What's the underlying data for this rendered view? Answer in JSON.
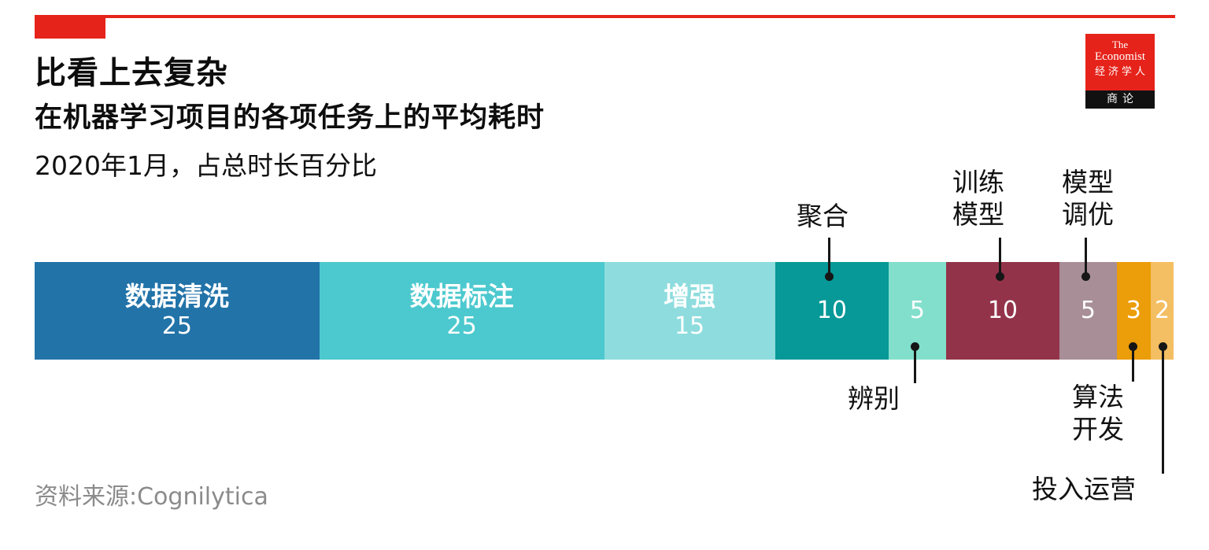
{
  "header": {
    "title": "比看上去复杂",
    "subtitle": "在机器学习项目的各项任务上的平均耗时",
    "period": "2020年1月，占总时长百分比"
  },
  "logo": {
    "line1": "The",
    "line2": "Economist",
    "line3": "经济学人",
    "line4": "商论"
  },
  "colors": {
    "accent_red": "#E6231A",
    "callout_black": "#161616",
    "source_gray": "#8B8B8B"
  },
  "chart_data": {
    "type": "bar",
    "orientation": "horizontal-stacked",
    "title": "比看上去复杂",
    "subtitle": "在机器学习项目的各项任务上的平均耗时",
    "note": "2020年1月，占总时长百分比",
    "unit": "percent_of_total_time",
    "total": 100,
    "legend_position": "none",
    "grid": false,
    "segments": [
      {
        "label": "数据清洗",
        "value": 25,
        "color": "#2273A8",
        "label_position": "inside"
      },
      {
        "label": "数据标注",
        "value": 25,
        "color": "#4CC9CE",
        "label_position": "inside"
      },
      {
        "label": "增强",
        "value": 15,
        "color": "#8EDCDE",
        "label_position": "inside"
      },
      {
        "label": "聚合",
        "value": 10,
        "color": "#079898",
        "label_position": "above"
      },
      {
        "label": "辨别",
        "value": 5,
        "color": "#82DFCB",
        "label_position": "below"
      },
      {
        "label": "训练模型",
        "value": 10,
        "color": "#93334A",
        "label_position": "above"
      },
      {
        "label": "模型调优",
        "value": 5,
        "color": "#A78E97",
        "label_position": "above"
      },
      {
        "label": "算法开发",
        "value": 3,
        "color": "#EC9D0A",
        "label_position": "below"
      },
      {
        "label": "投入运营",
        "value": 2,
        "color": "#F4BE62",
        "label_position": "below"
      }
    ],
    "source": "资料来源:Cognilytica"
  }
}
